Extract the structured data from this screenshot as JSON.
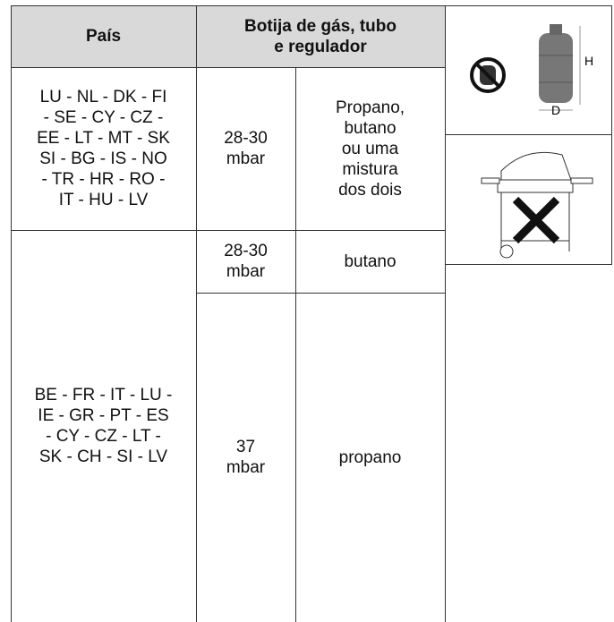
{
  "header": {
    "country": "País",
    "cylinder": [
      "Botija de gás, tubo",
      "e regulador"
    ]
  },
  "rows": [
    {
      "countries": [
        "LU - NL - DK - FI",
        "- SE - CY - CZ -",
        "EE - LT - MT - SK",
        "SI - BG - IS - NO",
        "- TR - HR - RO -",
        "IT - HU - LV"
      ],
      "pressure": [
        "28-30",
        "mbar"
      ],
      "gas": [
        "Propano,",
        "butano",
        "ou uma",
        "mistura",
        "dos dois"
      ]
    },
    {
      "countries": [
        "BE - FR - IT - LU -",
        "IE - GR - PT - ES",
        "- CY - CZ - LT -",
        "SK - CH - SI - LV"
      ],
      "options": [
        {
          "pressure": [
            "28-30",
            "mbar"
          ],
          "gas": [
            "butano"
          ]
        },
        {
          "pressure": [
            "37",
            "mbar"
          ],
          "gas": [
            "propano"
          ]
        }
      ]
    }
  ],
  "icon_labels": {
    "height": "H",
    "diameter": "D"
  }
}
